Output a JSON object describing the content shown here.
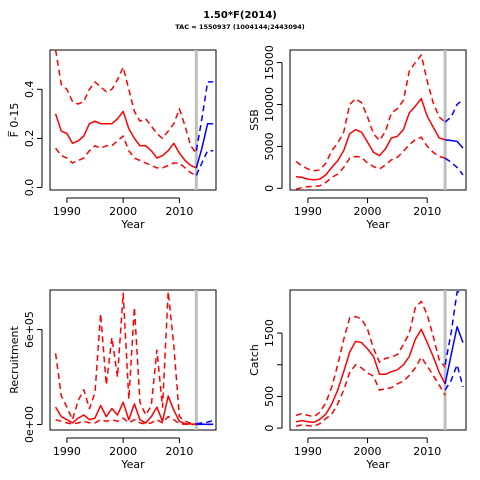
{
  "header": {
    "title": "1.50*F(2014)",
    "subtitle": "TAC = 1550937 (1004144;2443094)"
  },
  "colors": {
    "historical": "#ff0000",
    "projection": "#0000ff",
    "reference_line": "#bebebe",
    "axis": "#000000"
  },
  "chart_data": [
    {
      "type": "line",
      "xlabel": "Year",
      "ylabel": "F̅ 0-15",
      "xlim": [
        1987,
        2016.5
      ],
      "ylim": [
        -0.01,
        0.56
      ],
      "xticks": [
        1990,
        2000,
        2010
      ],
      "yticks": [
        0.0,
        0.2,
        0.4
      ],
      "ytick_labels": [
        "0.0",
        "0.2",
        "0.4"
      ],
      "ref_year": 2013,
      "hist_x": [
        1988,
        1989,
        1990,
        1991,
        1992,
        1993,
        1994,
        1995,
        1996,
        1997,
        1998,
        1999,
        2000,
        2001,
        2002,
        2003,
        2004,
        2005,
        2006,
        2007,
        2008,
        2009,
        2010,
        2011,
        2012,
        2013
      ],
      "series": [
        {
          "role": "hist_median",
          "values": [
            0.3,
            0.23,
            0.22,
            0.18,
            0.19,
            0.21,
            0.26,
            0.27,
            0.26,
            0.26,
            0.26,
            0.28,
            0.31,
            0.24,
            0.2,
            0.17,
            0.17,
            0.15,
            0.12,
            0.13,
            0.15,
            0.18,
            0.14,
            0.11,
            0.09,
            0.08
          ]
        },
        {
          "role": "hist_upper",
          "values": [
            0.56,
            0.42,
            0.4,
            0.35,
            0.34,
            0.35,
            0.4,
            0.43,
            0.41,
            0.39,
            0.4,
            0.44,
            0.49,
            0.4,
            0.31,
            0.27,
            0.28,
            0.25,
            0.22,
            0.2,
            0.23,
            0.26,
            0.32,
            0.25,
            0.17,
            0.14
          ]
        },
        {
          "role": "hist_lower",
          "values": [
            0.16,
            0.13,
            0.12,
            0.1,
            0.11,
            0.12,
            0.15,
            0.17,
            0.16,
            0.17,
            0.17,
            0.19,
            0.21,
            0.15,
            0.12,
            0.11,
            0.1,
            0.09,
            0.08,
            0.08,
            0.09,
            0.1,
            0.1,
            0.08,
            0.06,
            0.05
          ]
        }
      ],
      "proj_x": [
        2013,
        2014,
        2015,
        2016
      ],
      "projection": {
        "median": [
          0.08,
          0.16,
          0.26,
          0.26
        ],
        "upper": [
          0.15,
          0.28,
          0.43,
          0.43
        ],
        "lower": [
          0.05,
          0.1,
          0.15,
          0.15
        ]
      }
    },
    {
      "type": "line",
      "xlabel": "Year",
      "ylabel": "SSB",
      "xlim": [
        1987,
        2016.5
      ],
      "ylim": [
        -200,
        16500
      ],
      "xticks": [
        1990,
        2000,
        2010
      ],
      "yticks": [
        0,
        5000,
        10000,
        15000
      ],
      "ytick_labels": [
        "0",
        "5000",
        "10000",
        "15000"
      ],
      "ref_year": 2013,
      "hist_x": [
        1988,
        1989,
        1990,
        1991,
        1992,
        1993,
        1994,
        1995,
        1996,
        1997,
        1998,
        1999,
        2000,
        2001,
        2002,
        2003,
        2004,
        2005,
        2006,
        2007,
        2008,
        2009,
        2010,
        2011,
        2012,
        2013
      ],
      "series": [
        {
          "role": "hist_median",
          "values": [
            1400,
            1300,
            1100,
            1000,
            1100,
            1600,
            2500,
            3300,
            4500,
            6500,
            7000,
            6700,
            5500,
            4300,
            3900,
            4700,
            6000,
            6200,
            7000,
            9000,
            9800,
            10700,
            8600,
            7300,
            6000,
            5800
          ]
        },
        {
          "role": "hist_upper",
          "values": [
            3200,
            2700,
            2300,
            2100,
            2200,
            3000,
            4500,
            5400,
            6700,
            10000,
            10700,
            10200,
            8500,
            6500,
            5700,
            6800,
            9000,
            9500,
            10500,
            14000,
            15000,
            15900,
            12800,
            10200,
            8500,
            7900
          ]
        },
        {
          "role": "hist_lower",
          "values": [
            -100,
            100,
            200,
            200,
            300,
            700,
            1300,
            1700,
            2500,
            3600,
            3800,
            3700,
            3000,
            2600,
            2300,
            2800,
            3400,
            3700,
            4400,
            5200,
            5800,
            6100,
            5000,
            4300,
            3800,
            3600
          ]
        }
      ],
      "proj_x": [
        2013,
        2014,
        2015,
        2016
      ],
      "projection": {
        "median": [
          5800,
          5700,
          5600,
          4800
        ],
        "upper": [
          7900,
          8500,
          10000,
          10600
        ],
        "lower": [
          3600,
          3100,
          2500,
          1600
        ]
      }
    },
    {
      "type": "line",
      "xlabel": "Year",
      "ylabel": "Recruitment",
      "xlim": [
        1987,
        2016.5
      ],
      "ylim": [
        -35000.0,
        850000.0
      ],
      "xticks": [
        1990,
        2000,
        2010
      ],
      "yticks": [
        0,
        600000
      ],
      "ytick_labels": [
        "0e+00",
        "6e+05"
      ],
      "ref_year": 2013,
      "hist_x": [
        1988,
        1989,
        1990,
        1991,
        1992,
        1993,
        1994,
        1995,
        1996,
        1997,
        1998,
        1999,
        2000,
        2001,
        2002,
        2003,
        2004,
        2005,
        2006,
        2007,
        2008,
        2009,
        2010,
        2011,
        2012,
        2013
      ],
      "series": [
        {
          "role": "hist_median",
          "values": [
            110000,
            50000,
            30000,
            10000,
            40000,
            60000,
            30000,
            40000,
            120000,
            50000,
            100000,
            60000,
            140000,
            30000,
            130000,
            30000,
            10000,
            50000,
            110000,
            20000,
            180000,
            90000,
            20000,
            5000,
            3000,
            2000
          ]
        },
        {
          "role": "hist_upper",
          "values": [
            450000,
            180000,
            110000,
            30000,
            150000,
            220000,
            100000,
            200000,
            700000,
            250000,
            550000,
            300000,
            830000,
            160000,
            740000,
            140000,
            60000,
            120000,
            470000,
            110000,
            840000,
            500000,
            50000,
            20000,
            8000,
            5000
          ]
        },
        {
          "role": "hist_lower",
          "values": [
            30000,
            20000,
            10000,
            3000,
            10000,
            20000,
            10000,
            10000,
            30000,
            20000,
            30000,
            20000,
            40000,
            10000,
            30000,
            10000,
            3000,
            10000,
            30000,
            10000,
            50000,
            30000,
            5000,
            1000,
            1000,
            500
          ]
        }
      ],
      "proj_x": [
        2013,
        2014,
        2015,
        2016
      ],
      "projection": {
        "median": [
          2000,
          1000,
          1000,
          1000
        ],
        "upper": [
          5000,
          10000,
          15000,
          25000
        ],
        "lower": [
          500,
          300,
          300,
          300
        ]
      }
    },
    {
      "type": "line",
      "xlabel": "Year",
      "ylabel": "Catch",
      "xlim": [
        1987,
        2016.5
      ],
      "ylim": [
        -30,
        2180
      ],
      "xticks": [
        1990,
        2000,
        2010
      ],
      "yticks": [
        0,
        500,
        1000,
        1500
      ],
      "ytick_labels": [
        "0",
        "500",
        "",
        "1500"
      ],
      "ref_year": 2013,
      "hist_x": [
        1988,
        1989,
        1990,
        1991,
        1992,
        1993,
        1994,
        1995,
        1996,
        1997,
        1998,
        1999,
        2000,
        2001,
        2002,
        2003,
        2004,
        2005,
        2006,
        2007,
        2008,
        2009,
        2010,
        2011,
        2012,
        2013
      ],
      "series": [
        {
          "role": "hist_median",
          "values": [
            100,
            120,
            100,
            90,
            140,
            220,
            380,
            600,
            890,
            1200,
            1370,
            1350,
            1250,
            1130,
            850,
            850,
            890,
            920,
            1000,
            1130,
            1400,
            1560,
            1350,
            1130,
            880,
            700
          ]
        },
        {
          "role": "hist_upper",
          "values": [
            200,
            230,
            200,
            180,
            250,
            400,
            650,
            1000,
            1400,
            1740,
            1760,
            1720,
            1560,
            1260,
            1040,
            1100,
            1120,
            1160,
            1320,
            1500,
            1900,
            2000,
            1790,
            1450,
            1080,
            960
          ]
        },
        {
          "role": "hist_lower",
          "values": [
            30,
            50,
            40,
            30,
            70,
            150,
            220,
            380,
            600,
            880,
            1000,
            950,
            870,
            820,
            600,
            620,
            640,
            700,
            740,
            830,
            950,
            1120,
            980,
            830,
            680,
            520
          ]
        }
      ],
      "proj_x": [
        2013,
        2014,
        2015,
        2016
      ],
      "projection": {
        "median": [
          700,
          1150,
          1600,
          1350
        ],
        "upper": [
          1000,
          1500,
          2150,
          2150
        ],
        "lower": [
          600,
          750,
          1000,
          650
        ]
      }
    }
  ]
}
